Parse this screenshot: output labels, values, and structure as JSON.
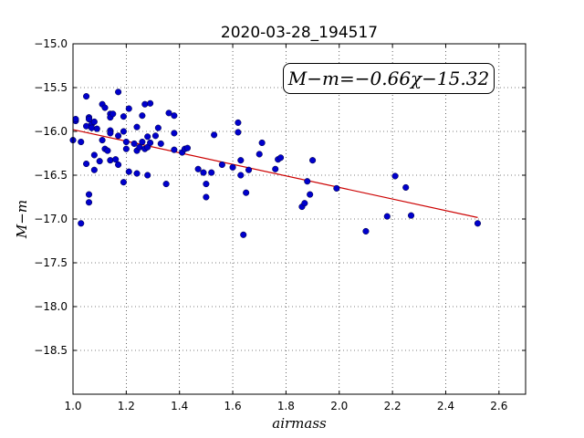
{
  "chart_data": {
    "type": "scatter",
    "title": "2020-03-28_194517",
    "xlabel": "airmass",
    "ylabel": "M−m",
    "annotation": "M−m=−0.66χ−15.32",
    "xlim": [
      1.0,
      2.7
    ],
    "ylim": [
      -15.0,
      -19.0
    ],
    "y_inverted": true,
    "grid": true,
    "x_ticks": [
      "1.0",
      "1.2",
      "1.4",
      "1.6",
      "1.8",
      "2.0",
      "2.2",
      "2.4",
      "2.6"
    ],
    "y_ticks": [
      "−15.0",
      "−15.5",
      "−16.0",
      "−16.5",
      "−17.0",
      "−17.5",
      "−18.0",
      "−18.5"
    ],
    "marker_color": "#0000cc",
    "fit_color": "#cc0000",
    "fit": {
      "slope": -0.66,
      "intercept": -15.32,
      "x_range": [
        1.0,
        2.52
      ]
    },
    "points": [
      [
        1.0,
        -16.1
      ],
      [
        1.01,
        -15.88
      ],
      [
        1.01,
        -15.86
      ],
      [
        1.03,
        -16.12
      ],
      [
        1.03,
        -17.05
      ],
      [
        1.05,
        -15.6
      ],
      [
        1.05,
        -16.37
      ],
      [
        1.05,
        -15.94
      ],
      [
        1.06,
        -15.84
      ],
      [
        1.06,
        -15.86
      ],
      [
        1.06,
        -16.72
      ],
      [
        1.06,
        -16.81
      ],
      [
        1.07,
        -15.92
      ],
      [
        1.07,
        -15.96
      ],
      [
        1.08,
        -15.89
      ],
      [
        1.08,
        -16.27
      ],
      [
        1.08,
        -16.44
      ],
      [
        1.09,
        -15.97
      ],
      [
        1.1,
        -16.34
      ],
      [
        1.11,
        -15.69
      ],
      [
        1.11,
        -16.1
      ],
      [
        1.12,
        -15.73
      ],
      [
        1.12,
        -16.2
      ],
      [
        1.13,
        -16.22
      ],
      [
        1.14,
        -15.8
      ],
      [
        1.14,
        -15.84
      ],
      [
        1.14,
        -15.99
      ],
      [
        1.14,
        -16.02
      ],
      [
        1.14,
        -16.33
      ],
      [
        1.15,
        -15.8
      ],
      [
        1.16,
        -16.32
      ],
      [
        1.17,
        -15.55
      ],
      [
        1.17,
        -16.05
      ],
      [
        1.17,
        -16.38
      ],
      [
        1.19,
        -15.83
      ],
      [
        1.19,
        -16.0
      ],
      [
        1.19,
        -16.58
      ],
      [
        1.2,
        -16.12
      ],
      [
        1.2,
        -16.2
      ],
      [
        1.21,
        -15.74
      ],
      [
        1.21,
        -16.46
      ],
      [
        1.23,
        -16.14
      ],
      [
        1.24,
        -15.95
      ],
      [
        1.24,
        -16.48
      ],
      [
        1.24,
        -16.22
      ],
      [
        1.25,
        -16.18
      ],
      [
        1.26,
        -16.12
      ],
      [
        1.26,
        -15.82
      ],
      [
        1.27,
        -16.2
      ],
      [
        1.27,
        -15.69
      ],
      [
        1.28,
        -16.06
      ],
      [
        1.28,
        -16.5
      ],
      [
        1.28,
        -16.18
      ],
      [
        1.29,
        -15.68
      ],
      [
        1.29,
        -16.13
      ],
      [
        1.31,
        -16.05
      ],
      [
        1.32,
        -15.96
      ],
      [
        1.33,
        -16.14
      ],
      [
        1.35,
        -16.6
      ],
      [
        1.36,
        -15.79
      ],
      [
        1.38,
        -15.82
      ],
      [
        1.38,
        -16.02
      ],
      [
        1.38,
        -16.21
      ],
      [
        1.41,
        -16.24
      ],
      [
        1.42,
        -16.2
      ],
      [
        1.43,
        -16.19
      ],
      [
        1.47,
        -16.43
      ],
      [
        1.49,
        -16.47
      ],
      [
        1.5,
        -16.6
      ],
      [
        1.5,
        -16.75
      ],
      [
        1.52,
        -16.47
      ],
      [
        1.53,
        -16.04
      ],
      [
        1.56,
        -16.38
      ],
      [
        1.6,
        -16.41
      ],
      [
        1.62,
        -15.9
      ],
      [
        1.62,
        -16.01
      ],
      [
        1.63,
        -16.33
      ],
      [
        1.63,
        -16.5
      ],
      [
        1.64,
        -17.18
      ],
      [
        1.65,
        -16.7
      ],
      [
        1.66,
        -16.44
      ],
      [
        1.7,
        -16.26
      ],
      [
        1.71,
        -16.13
      ],
      [
        1.76,
        -16.43
      ],
      [
        1.77,
        -16.32
      ],
      [
        1.78,
        -16.3
      ],
      [
        1.86,
        -16.86
      ],
      [
        1.87,
        -16.82
      ],
      [
        1.88,
        -16.57
      ],
      [
        1.89,
        -16.72
      ],
      [
        1.9,
        -16.33
      ],
      [
        1.99,
        -16.65
      ],
      [
        2.1,
        -17.14
      ],
      [
        2.18,
        -16.97
      ],
      [
        2.21,
        -16.51
      ],
      [
        2.25,
        -16.64
      ],
      [
        2.27,
        -16.96
      ],
      [
        2.52,
        -17.05
      ]
    ]
  }
}
